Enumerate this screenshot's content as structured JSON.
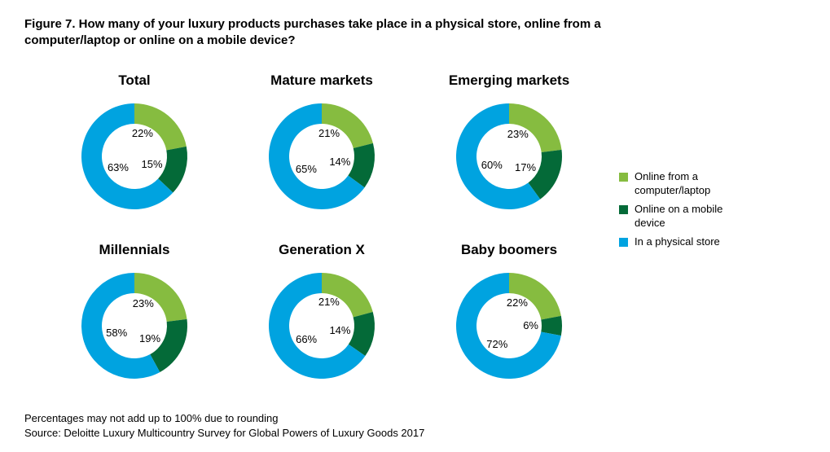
{
  "title": "Figure 7. How many of your luxury products purchases take place in a physical store, online from a computer/laptop or online on a mobile device?",
  "background_color": "#ffffff",
  "colors": {
    "laptop": "#86bc40",
    "mobile": "#046a38",
    "store": "#00a3e0"
  },
  "donut": {
    "size": 150,
    "outer_radius": 65,
    "inner_radius": 40
  },
  "charts": [
    {
      "title": "Total",
      "laptop": 22,
      "mobile": 15,
      "store": 63
    },
    {
      "title": "Mature markets",
      "laptop": 21,
      "mobile": 14,
      "store": 65
    },
    {
      "title": "Emerging markets",
      "laptop": 23,
      "mobile": 17,
      "store": 60
    },
    {
      "title": "Millennials",
      "laptop": 23,
      "mobile": 19,
      "store": 58
    },
    {
      "title": "Generation X",
      "laptop": 21,
      "mobile": 14,
      "store": 66
    },
    {
      "title": "Baby boomers",
      "laptop": 22,
      "mobile": 6,
      "store": 72
    }
  ],
  "legend": [
    {
      "color_key": "laptop",
      "label": "Online from a computer/laptop"
    },
    {
      "color_key": "mobile",
      "label": "Online on a mobile device"
    },
    {
      "color_key": "store",
      "label": "In a physical store"
    }
  ],
  "footnote1": "Percentages may not add up to 100% due to rounding",
  "footnote2": "Source: Deloitte Luxury Multicountry Survey for Global Powers of Luxury Goods 2017"
}
